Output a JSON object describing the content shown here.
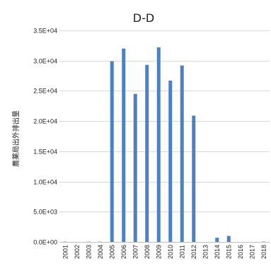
{
  "chart_data": {
    "type": "bar",
    "title": "D-D",
    "xlabel": "",
    "ylabel": "農薬局出外排出量",
    "categories": [
      "2001",
      "2002",
      "2003",
      "2004",
      "2005",
      "2006",
      "2007",
      "2008",
      "2009",
      "2010",
      "2011",
      "2012",
      "2013",
      "2014",
      "2015",
      "2016",
      "2017",
      "2018"
    ],
    "series": [
      {
        "values": [
          50,
          0,
          40,
          40,
          29900,
          32000,
          24500,
          29300,
          32200,
          26700,
          29200,
          20900,
          0,
          700,
          1000,
          0,
          0,
          50
        ]
      }
    ],
    "ylim": [
      0,
      35000
    ],
    "yticks": [
      "0.0E+00",
      "5.0E+03",
      "1.0E+04",
      "1.5E+04",
      "2.0E+04",
      "2.5E+04",
      "3.0E+04",
      "3.5E+04"
    ],
    "grid": true,
    "legend": "none",
    "colors": {
      "bar": "#4f81bd",
      "grid": "#d9d9d9",
      "axis": "#bfbfbf"
    }
  }
}
